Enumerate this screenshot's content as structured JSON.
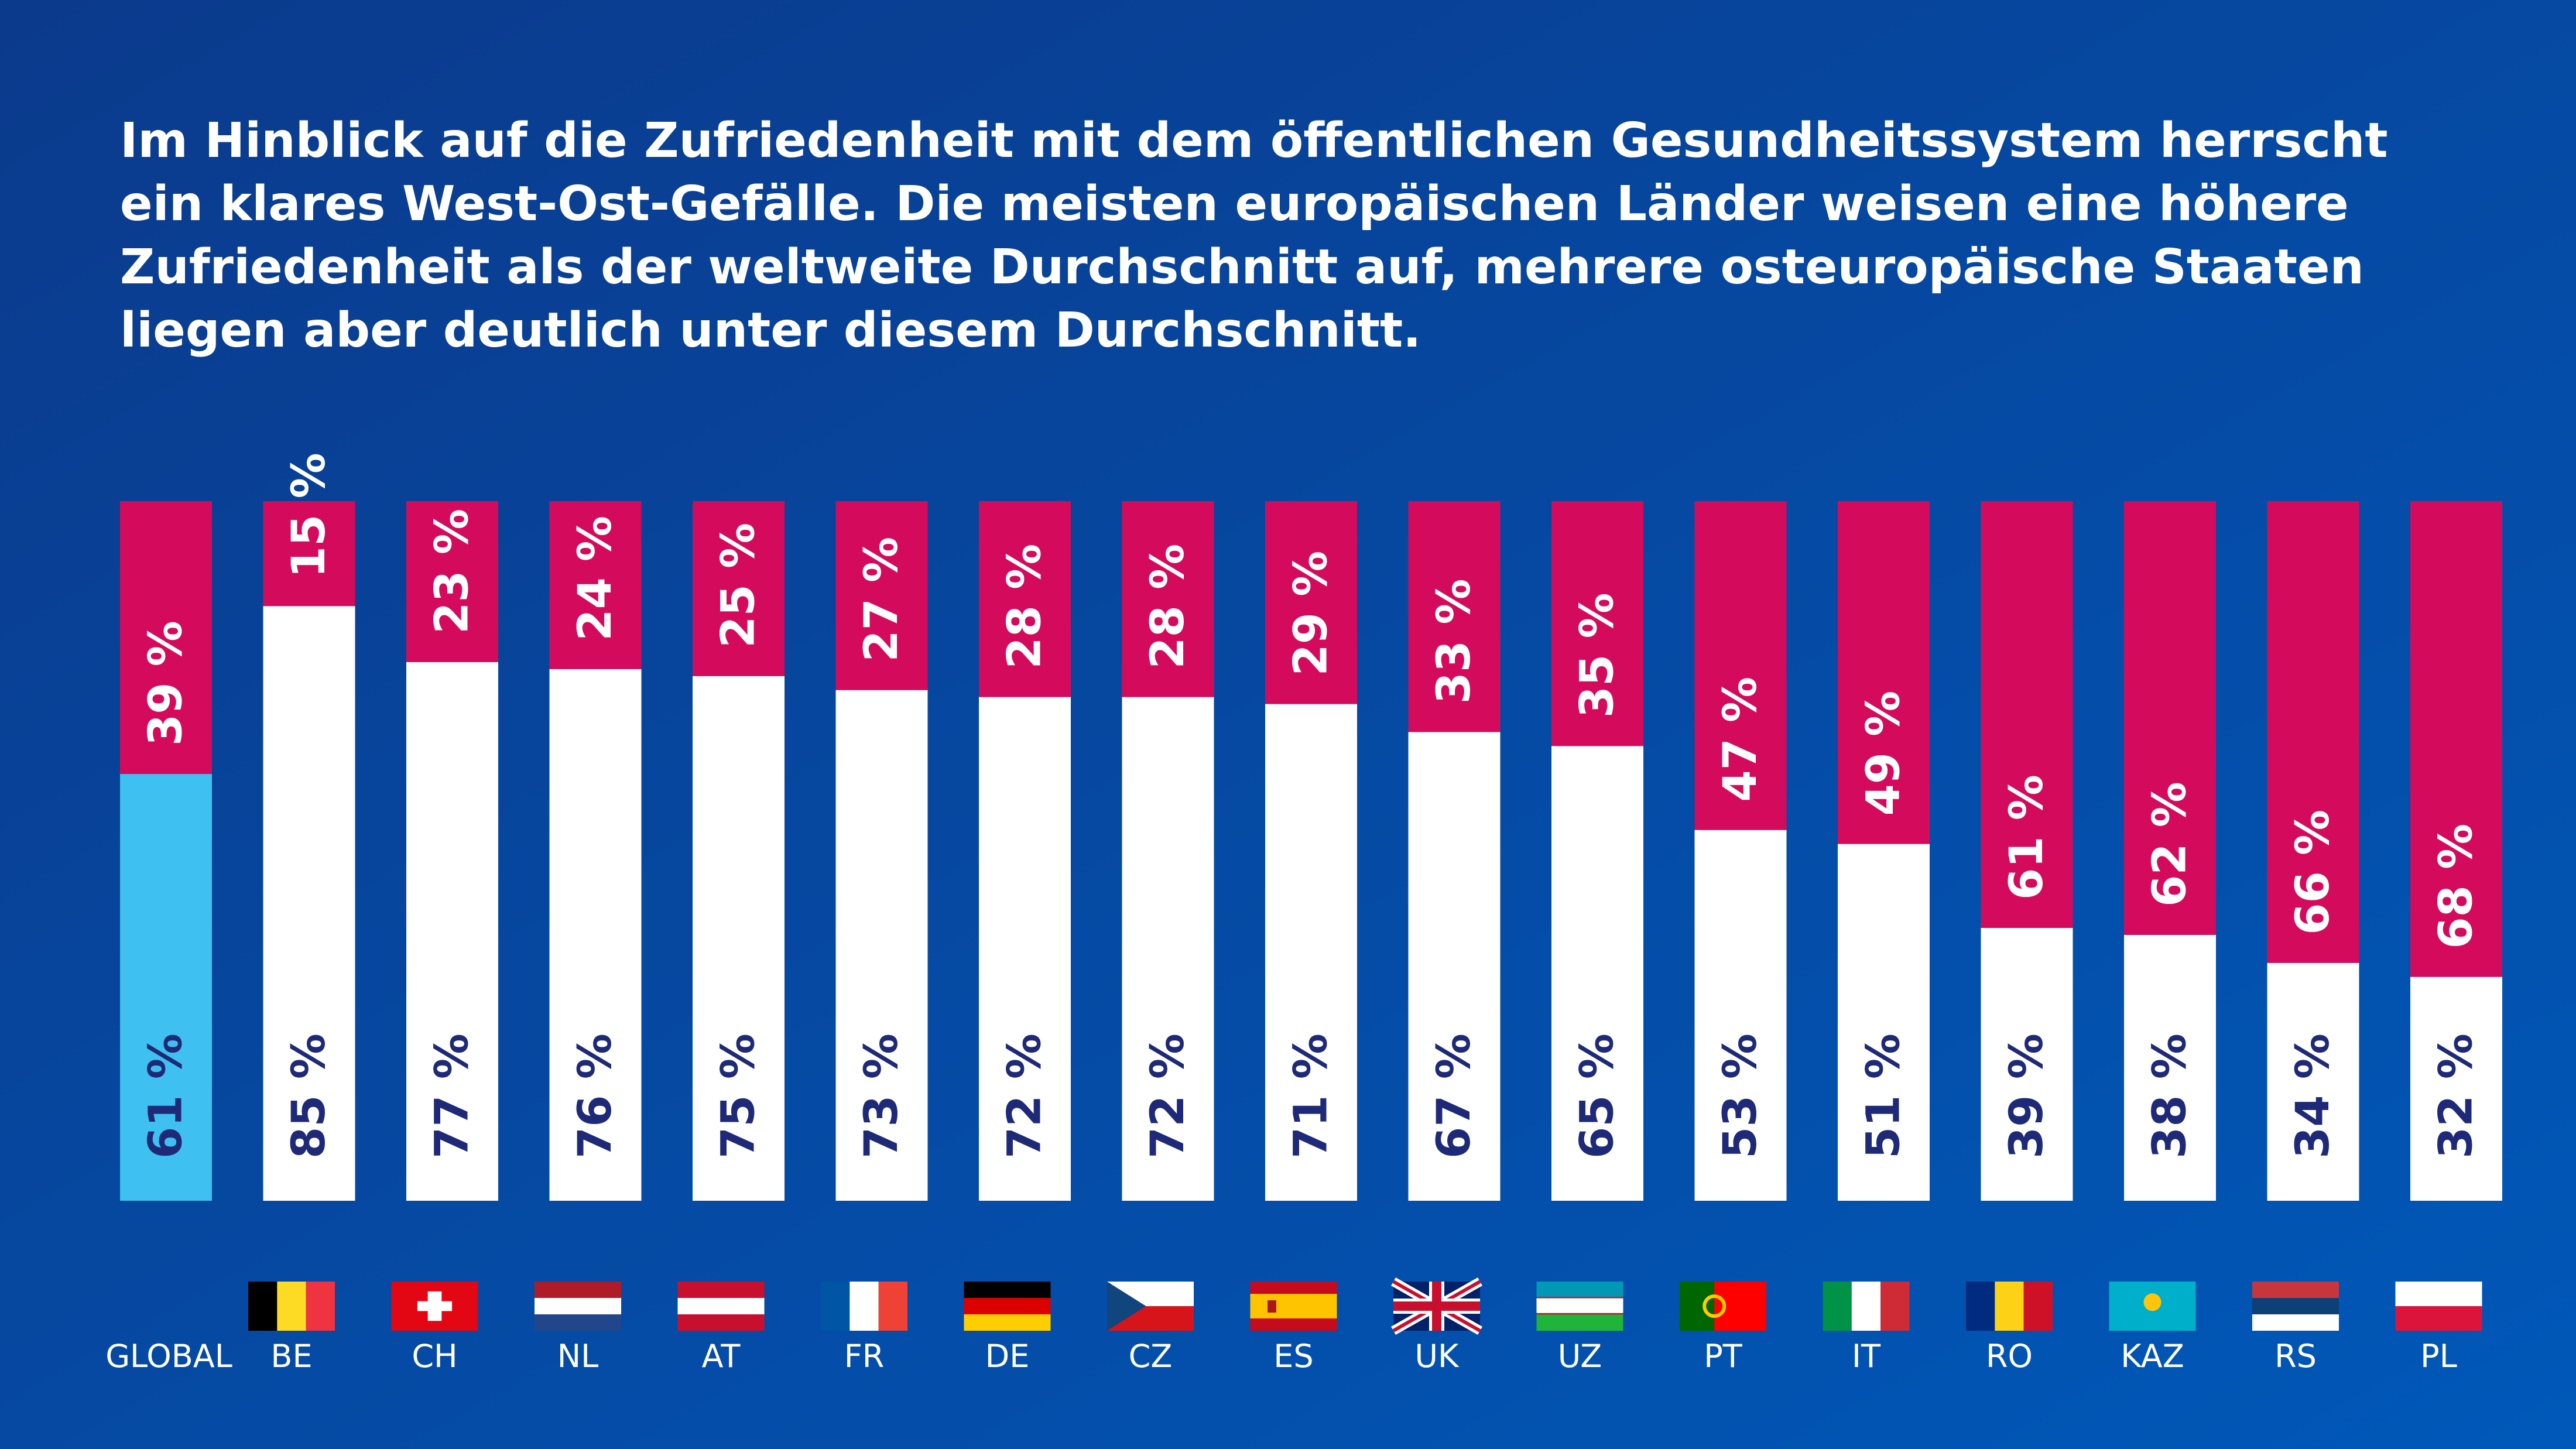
{
  "chart_data": {
    "type": "stacked_bar",
    "title": [
      "Im Hinblick auf die Zufriedenheit mit dem öffentlichen Gesundheitssystem herrscht",
      "ein klares West-Ost-Gefälle. Die meisten europäischen Länder weisen eine höhere",
      "Zufriedenheit als der weltweite Durchschnitt auf, mehrere osteuropäische Staaten",
      "liegen aber deutlich unter diesem Durchschnitt."
    ],
    "categories": [
      "GLOBAL",
      "BE",
      "CH",
      "NL",
      "AT",
      "FR",
      "DE",
      "CZ",
      "ES",
      "UK",
      "UZ",
      "PT",
      "IT",
      "RO",
      "KAZ",
      "RS",
      "PL"
    ],
    "ylim": [
      0,
      100
    ],
    "series": [
      {
        "color": "#ffffff",
        "colors": [
          "#3ec1f0",
          "#ffffff",
          "#ffffff",
          "#ffffff",
          "#ffffff",
          "#ffffff",
          "#ffffff",
          "#ffffff",
          "#ffffff",
          "#ffffff",
          "#ffffff",
          "#ffffff",
          "#ffffff",
          "#ffffff",
          "#ffffff",
          "#ffffff",
          "#ffffff"
        ],
        "label_color": "#1e2a78",
        "values": [
          61,
          85,
          77,
          76,
          75,
          73,
          72,
          72,
          71,
          67,
          65,
          53,
          51,
          39,
          38,
          34,
          32
        ],
        "value_labels": [
          "61 %",
          "85 %",
          "77 %",
          "76 %",
          "75 %",
          "73 %",
          "72 %",
          "72 %",
          "71 %",
          "67 %",
          "65 %",
          "53 %",
          "51 %",
          "39 %",
          "38 %",
          "34 %",
          "32 %"
        ]
      },
      {
        "color": "#d40b5c",
        "label_color": "#ffffff",
        "values": [
          39,
          15,
          23,
          24,
          25,
          27,
          28,
          28,
          29,
          33,
          35,
          47,
          49,
          61,
          62,
          66,
          68
        ],
        "value_labels": [
          "39 %",
          "15 %",
          "23 %",
          "24 %",
          "25 %",
          "27 %",
          "28 %",
          "28 %",
          "29 %",
          "33 %",
          "35 %",
          "47 %",
          "49 %",
          "61 %",
          "62 %",
          "66 %",
          "68 %"
        ]
      }
    ]
  }
}
